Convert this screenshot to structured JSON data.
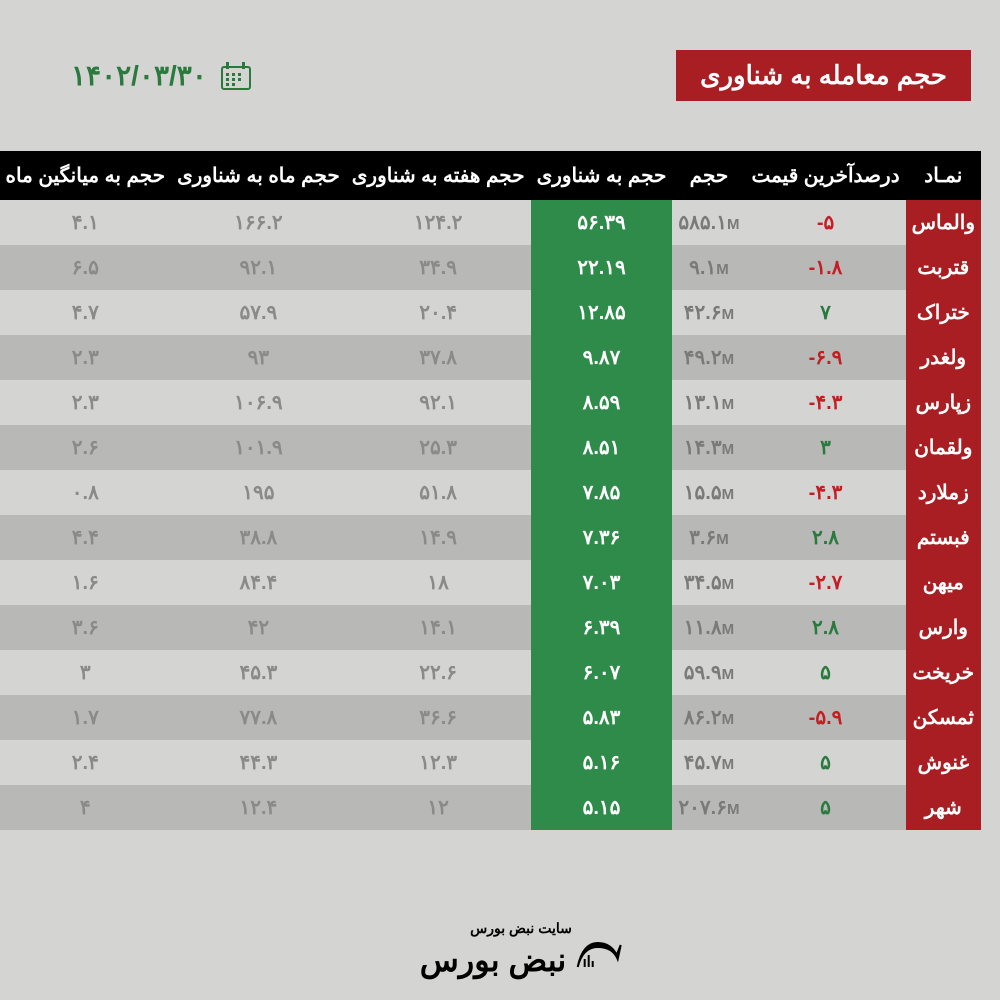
{
  "header": {
    "title": "حجم معامله به شناوری",
    "date": "۱۴۰۲/۰۳/۳۰"
  },
  "columns": [
    "نمـاد",
    "درصدآخرین قیمت",
    "حجم",
    "حجم به شناوری",
    "حجم هفته به شناوری",
    "حجم ماه به شناوری",
    "حجم به میانگین ماه"
  ],
  "rows": [
    {
      "symbol": "والماس",
      "pct": "-۵",
      "pctDir": "neg",
      "vol": "۵۸۵.۱",
      "ratio": "۵۶.۳۹",
      "week": "۱۲۴.۲",
      "month": "۱۶۶.۲",
      "avg": "۴.۱"
    },
    {
      "symbol": "قتربت",
      "pct": "-۱.۸",
      "pctDir": "neg",
      "vol": "۹.۱",
      "ratio": "۲۲.۱۹",
      "week": "۳۴.۹",
      "month": "۹۲.۱",
      "avg": "۶.۵"
    },
    {
      "symbol": "ختراک",
      "pct": "۷",
      "pctDir": "pos",
      "vol": "۴۲.۶",
      "ratio": "۱۲.۸۵",
      "week": "۲۰.۴",
      "month": "۵۷.۹",
      "avg": "۴.۷"
    },
    {
      "symbol": "ولغدر",
      "pct": "-۶.۹",
      "pctDir": "neg",
      "vol": "۴۹.۲",
      "ratio": "۹.۸۷",
      "week": "۳۷.۸",
      "month": "۹۳",
      "avg": "۲.۳"
    },
    {
      "symbol": "زپارس",
      "pct": "-۴.۳",
      "pctDir": "neg",
      "vol": "۱۳.۱",
      "ratio": "۸.۵۹",
      "week": "۹۲.۱",
      "month": "۱۰۶.۹",
      "avg": "۲.۳"
    },
    {
      "symbol": "ولقمان",
      "pct": "۳",
      "pctDir": "pos",
      "vol": "۱۴.۳",
      "ratio": "۸.۵۱",
      "week": "۲۵.۳",
      "month": "۱۰۱.۹",
      "avg": "۲.۶"
    },
    {
      "symbol": "زملارد",
      "pct": "-۴.۳",
      "pctDir": "neg",
      "vol": "۱۵.۵",
      "ratio": "۷.۸۵",
      "week": "۵۱.۸",
      "month": "۱۹۵",
      "avg": "۰.۸"
    },
    {
      "symbol": "فبستم",
      "pct": "۲.۸",
      "pctDir": "pos",
      "vol": "۳.۶",
      "ratio": "۷.۳۶",
      "week": "۱۴.۹",
      "month": "۳۸.۸",
      "avg": "۴.۴"
    },
    {
      "symbol": "میهن",
      "pct": "-۲.۷",
      "pctDir": "neg",
      "vol": "۳۴.۵",
      "ratio": "۷.۰۳",
      "week": "۱۸",
      "month": "۸۴.۴",
      "avg": "۱.۶"
    },
    {
      "symbol": "وارس",
      "pct": "۲.۸",
      "pctDir": "pos",
      "vol": "۱۱.۸",
      "ratio": "۶.۳۹",
      "week": "۱۴.۱",
      "month": "۴۲",
      "avg": "۳.۶"
    },
    {
      "symbol": "خریخت",
      "pct": "۵",
      "pctDir": "pos",
      "vol": "۵۹.۹",
      "ratio": "۶.۰۷",
      "week": "۲۲.۶",
      "month": "۴۵.۳",
      "avg": "۳"
    },
    {
      "symbol": "ثمسکن",
      "pct": "-۵.۹",
      "pctDir": "neg",
      "vol": "۸۶.۲",
      "ratio": "۵.۸۳",
      "week": "۳۶.۶",
      "month": "۷۷.۸",
      "avg": "۱.۷"
    },
    {
      "symbol": "غنوش",
      "pct": "۵",
      "pctDir": "pos",
      "vol": "۴۵.۷",
      "ratio": "۵.۱۶",
      "week": "۱۲.۳",
      "month": "۴۴.۳",
      "avg": "۲.۴"
    },
    {
      "symbol": "شهر",
      "pct": "۵",
      "pctDir": "pos",
      "vol": "۲۰۷.۶",
      "ratio": "۵.۱۵",
      "week": "۱۲",
      "month": "۱۲.۴",
      "avg": "۴"
    }
  ],
  "footer": {
    "subtitle": "سایت نبض بورس",
    "brand": "نبض بورس"
  }
}
